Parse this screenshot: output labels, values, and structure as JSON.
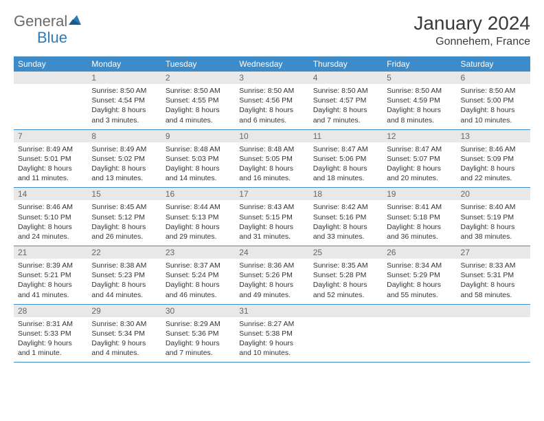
{
  "logo": {
    "general": "General",
    "blue": "Blue"
  },
  "title": "January 2024",
  "location": "Gonnehem, France",
  "colors": {
    "header_bg": "#3d8bc9",
    "header_text": "#ffffff",
    "daynum_bg": "#e8e8e8",
    "daynum_text": "#666666",
    "body_text": "#333333",
    "border": "#3d8bc9",
    "logo_general": "#6a6a6a",
    "logo_blue": "#2a7ab8"
  },
  "day_names": [
    "Sunday",
    "Monday",
    "Tuesday",
    "Wednesday",
    "Thursday",
    "Friday",
    "Saturday"
  ],
  "weeks": [
    [
      null,
      {
        "n": "1",
        "sr": "8:50 AM",
        "ss": "4:54 PM",
        "dl": "8 hours and 3 minutes."
      },
      {
        "n": "2",
        "sr": "8:50 AM",
        "ss": "4:55 PM",
        "dl": "8 hours and 4 minutes."
      },
      {
        "n": "3",
        "sr": "8:50 AM",
        "ss": "4:56 PM",
        "dl": "8 hours and 6 minutes."
      },
      {
        "n": "4",
        "sr": "8:50 AM",
        "ss": "4:57 PM",
        "dl": "8 hours and 7 minutes."
      },
      {
        "n": "5",
        "sr": "8:50 AM",
        "ss": "4:59 PM",
        "dl": "8 hours and 8 minutes."
      },
      {
        "n": "6",
        "sr": "8:50 AM",
        "ss": "5:00 PM",
        "dl": "8 hours and 10 minutes."
      }
    ],
    [
      {
        "n": "7",
        "sr": "8:49 AM",
        "ss": "5:01 PM",
        "dl": "8 hours and 11 minutes."
      },
      {
        "n": "8",
        "sr": "8:49 AM",
        "ss": "5:02 PM",
        "dl": "8 hours and 13 minutes."
      },
      {
        "n": "9",
        "sr": "8:48 AM",
        "ss": "5:03 PM",
        "dl": "8 hours and 14 minutes."
      },
      {
        "n": "10",
        "sr": "8:48 AM",
        "ss": "5:05 PM",
        "dl": "8 hours and 16 minutes."
      },
      {
        "n": "11",
        "sr": "8:47 AM",
        "ss": "5:06 PM",
        "dl": "8 hours and 18 minutes."
      },
      {
        "n": "12",
        "sr": "8:47 AM",
        "ss": "5:07 PM",
        "dl": "8 hours and 20 minutes."
      },
      {
        "n": "13",
        "sr": "8:46 AM",
        "ss": "5:09 PM",
        "dl": "8 hours and 22 minutes."
      }
    ],
    [
      {
        "n": "14",
        "sr": "8:46 AM",
        "ss": "5:10 PM",
        "dl": "8 hours and 24 minutes."
      },
      {
        "n": "15",
        "sr": "8:45 AM",
        "ss": "5:12 PM",
        "dl": "8 hours and 26 minutes."
      },
      {
        "n": "16",
        "sr": "8:44 AM",
        "ss": "5:13 PM",
        "dl": "8 hours and 29 minutes."
      },
      {
        "n": "17",
        "sr": "8:43 AM",
        "ss": "5:15 PM",
        "dl": "8 hours and 31 minutes."
      },
      {
        "n": "18",
        "sr": "8:42 AM",
        "ss": "5:16 PM",
        "dl": "8 hours and 33 minutes."
      },
      {
        "n": "19",
        "sr": "8:41 AM",
        "ss": "5:18 PM",
        "dl": "8 hours and 36 minutes."
      },
      {
        "n": "20",
        "sr": "8:40 AM",
        "ss": "5:19 PM",
        "dl": "8 hours and 38 minutes."
      }
    ],
    [
      {
        "n": "21",
        "sr": "8:39 AM",
        "ss": "5:21 PM",
        "dl": "8 hours and 41 minutes."
      },
      {
        "n": "22",
        "sr": "8:38 AM",
        "ss": "5:23 PM",
        "dl": "8 hours and 44 minutes."
      },
      {
        "n": "23",
        "sr": "8:37 AM",
        "ss": "5:24 PM",
        "dl": "8 hours and 46 minutes."
      },
      {
        "n": "24",
        "sr": "8:36 AM",
        "ss": "5:26 PM",
        "dl": "8 hours and 49 minutes."
      },
      {
        "n": "25",
        "sr": "8:35 AM",
        "ss": "5:28 PM",
        "dl": "8 hours and 52 minutes."
      },
      {
        "n": "26",
        "sr": "8:34 AM",
        "ss": "5:29 PM",
        "dl": "8 hours and 55 minutes."
      },
      {
        "n": "27",
        "sr": "8:33 AM",
        "ss": "5:31 PM",
        "dl": "8 hours and 58 minutes."
      }
    ],
    [
      {
        "n": "28",
        "sr": "8:31 AM",
        "ss": "5:33 PM",
        "dl": "9 hours and 1 minute."
      },
      {
        "n": "29",
        "sr": "8:30 AM",
        "ss": "5:34 PM",
        "dl": "9 hours and 4 minutes."
      },
      {
        "n": "30",
        "sr": "8:29 AM",
        "ss": "5:36 PM",
        "dl": "9 hours and 7 minutes."
      },
      {
        "n": "31",
        "sr": "8:27 AM",
        "ss": "5:38 PM",
        "dl": "9 hours and 10 minutes."
      },
      null,
      null,
      null
    ]
  ],
  "labels": {
    "sunrise": "Sunrise: ",
    "sunset": "Sunset: ",
    "daylight": "Daylight: "
  }
}
